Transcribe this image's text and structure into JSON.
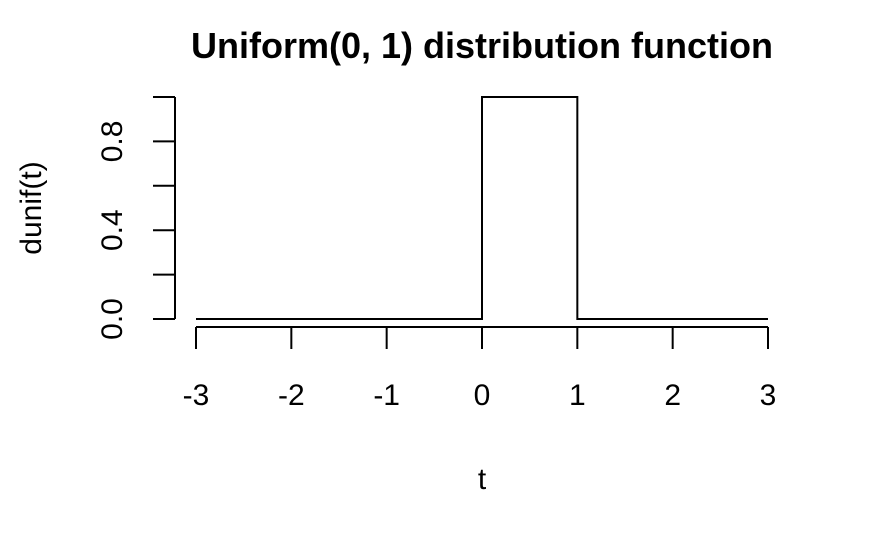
{
  "chart_data": {
    "type": "line",
    "title": "Uniform(0, 1) distribution function",
    "xlabel": "t",
    "ylabel": "dunif(t)",
    "xlim": [
      -3,
      3
    ],
    "ylim": [
      0,
      1
    ],
    "x_ticks": [
      -3,
      -2,
      -1,
      0,
      1,
      2,
      3
    ],
    "x_tick_labels": [
      "-3",
      "-2",
      "-1",
      "0",
      "1",
      "2",
      "3"
    ],
    "y_ticks": [
      0,
      0.2,
      0.4,
      0.6,
      0.8,
      1.0
    ],
    "y_tick_labels": [
      "0.0",
      "",
      "0.4",
      "",
      "0.8",
      ""
    ],
    "grid": false,
    "line_color": "#000000",
    "series": [
      {
        "x": [
          -3,
          0,
          0,
          1,
          1,
          3
        ],
        "y": [
          0,
          0,
          1,
          1,
          0,
          0
        ]
      }
    ]
  }
}
